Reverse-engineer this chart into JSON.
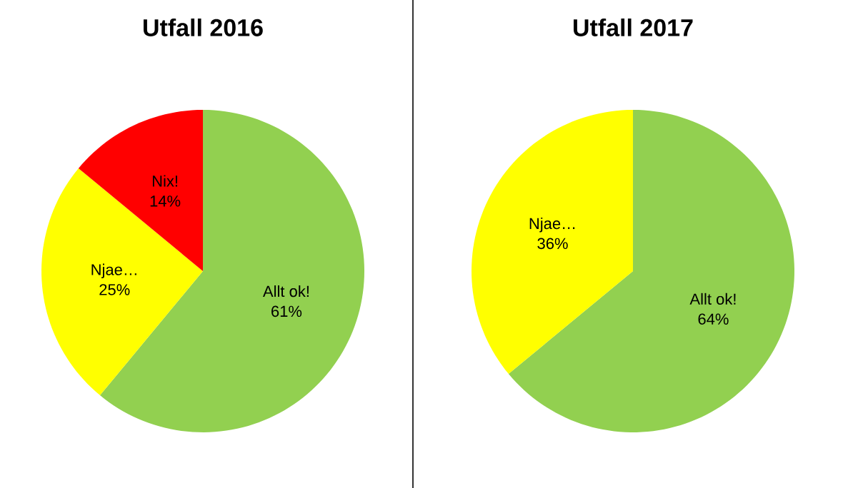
{
  "chart_data": [
    {
      "type": "pie",
      "title": "Utfall 2016",
      "categories": [
        "Allt ok!",
        "Njae…",
        "Nix!"
      ],
      "values": [
        61,
        25,
        14
      ],
      "value_labels": [
        "61%",
        "25%",
        "14%"
      ],
      "colors": [
        "#92d050",
        "#ffff00",
        "#ff0000"
      ]
    },
    {
      "type": "pie",
      "title": "Utfall 2017",
      "categories": [
        "Allt ok!",
        "Njae…"
      ],
      "values": [
        64,
        36
      ],
      "value_labels": [
        "64%",
        "36%"
      ],
      "colors": [
        "#92d050",
        "#ffff00"
      ]
    }
  ]
}
